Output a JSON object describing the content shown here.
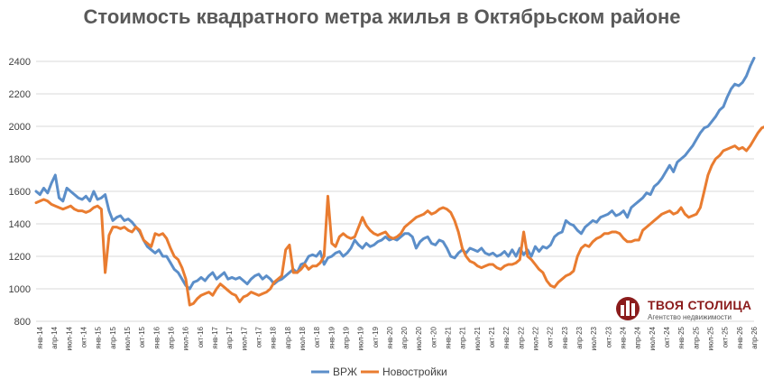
{
  "chart_data": {
    "type": "line",
    "title": "Стоимость квадратного метра жилья в Октябрьском районе",
    "xlabel": "",
    "ylabel": "",
    "ylim": [
      800,
      2400
    ],
    "yticks": [
      800,
      1000,
      1200,
      1400,
      1600,
      1800,
      2000,
      2200,
      2400
    ],
    "grid": true,
    "legend_position": "bottom",
    "x_tick_labels": [
      "янв-14",
      "апр-14",
      "июл-14",
      "окт-14",
      "янв-15",
      "апр-15",
      "июл-15",
      "окт-15",
      "янв-16",
      "апр-16",
      "июл-16",
      "окт-16",
      "янв-17",
      "апр-17",
      "июл-17",
      "окт-17",
      "янв-18",
      "апр-18",
      "июл-18",
      "окт-18",
      "янв-19",
      "апр-19",
      "июл-19",
      "окт-19",
      "янв-20",
      "апр-20",
      "июл-20",
      "окт-20",
      "янв-21",
      "апр-21",
      "июл-21",
      "окт-21",
      "янв-22",
      "апр-22",
      "июл-22",
      "окт-22",
      "янв-23",
      "апр-23",
      "июл-23",
      "окт-23",
      "янв-24",
      "апр-24",
      "июл-24",
      "окт-24",
      "янв-25",
      "апр-25",
      "июл-25",
      "окт-25",
      "янв-26",
      "апр-26"
    ],
    "series": [
      {
        "name": "ВРЖ",
        "color": "#5b8ec9",
        "values": [
          1600,
          1580,
          1620,
          1590,
          1650,
          1700,
          1560,
          1540,
          1620,
          1600,
          1580,
          1560,
          1550,
          1570,
          1540,
          1600,
          1550,
          1560,
          1580,
          1480,
          1420,
          1440,
          1450,
          1420,
          1430,
          1410,
          1380,
          1350,
          1300,
          1260,
          1240,
          1220,
          1240,
          1200,
          1200,
          1160,
          1120,
          1100,
          1060,
          1020,
          1000,
          1040,
          1050,
          1070,
          1050,
          1080,
          1100,
          1060,
          1080,
          1100,
          1060,
          1070,
          1060,
          1070,
          1050,
          1030,
          1060,
          1080,
          1090,
          1060,
          1080,
          1060,
          1030,
          1050,
          1060,
          1080,
          1100,
          1120,
          1100,
          1150,
          1160,
          1200,
          1210,
          1200,
          1230,
          1150,
          1190,
          1200,
          1220,
          1230,
          1200,
          1220,
          1250,
          1300,
          1270,
          1250,
          1280,
          1260,
          1270,
          1290,
          1300,
          1320,
          1300,
          1310,
          1300,
          1320,
          1340,
          1340,
          1320,
          1250,
          1290,
          1310,
          1320,
          1280,
          1270,
          1300,
          1290,
          1250,
          1200,
          1190,
          1220,
          1240,
          1220,
          1250,
          1240,
          1230,
          1250,
          1220,
          1210,
          1220,
          1200,
          1210,
          1230,
          1200,
          1240,
          1200,
          1250,
          1210,
          1240,
          1200,
          1260,
          1230,
          1260,
          1250,
          1270,
          1320,
          1340,
          1350,
          1420,
          1400,
          1390,
          1360,
          1340,
          1380,
          1400,
          1420,
          1410,
          1440,
          1450,
          1460,
          1480,
          1450,
          1460,
          1480,
          1440,
          1500,
          1520,
          1540,
          1560,
          1590,
          1580,
          1630,
          1650,
          1680,
          1720,
          1760,
          1720,
          1780,
          1800,
          1820,
          1850,
          1880,
          1920,
          1960,
          1990,
          2000,
          2030,
          2060,
          2100,
          2120,
          2180,
          2230,
          2260,
          2250,
          2270,
          2310,
          2370,
          2420
        ]
      },
      {
        "name": "Новостройки",
        "color": "#e97c30",
        "values": [
          1530,
          1540,
          1550,
          1540,
          1520,
          1510,
          1500,
          1490,
          1500,
          1510,
          1490,
          1480,
          1480,
          1470,
          1480,
          1500,
          1510,
          1490,
          1100,
          1330,
          1380,
          1380,
          1370,
          1380,
          1360,
          1350,
          1380,
          1360,
          1300,
          1280,
          1260,
          1340,
          1330,
          1340,
          1310,
          1250,
          1200,
          1180,
          1130,
          1060,
          900,
          910,
          940,
          960,
          970,
          980,
          960,
          1000,
          1030,
          1010,
          990,
          970,
          960,
          920,
          950,
          960,
          980,
          970,
          960,
          970,
          980,
          1000,
          1040,
          1060,
          1080,
          1240,
          1270,
          1100,
          1100,
          1120,
          1150,
          1120,
          1140,
          1140,
          1160,
          1200,
          1570,
          1280,
          1260,
          1320,
          1340,
          1320,
          1310,
          1320,
          1380,
          1440,
          1390,
          1360,
          1340,
          1330,
          1340,
          1350,
          1320,
          1310,
          1320,
          1340,
          1380,
          1400,
          1420,
          1440,
          1450,
          1460,
          1480,
          1460,
          1470,
          1490,
          1500,
          1490,
          1470,
          1420,
          1350,
          1250,
          1200,
          1170,
          1160,
          1140,
          1130,
          1140,
          1150,
          1150,
          1130,
          1120,
          1140,
          1150,
          1150,
          1160,
          1180,
          1350,
          1200,
          1180,
          1150,
          1120,
          1100,
          1050,
          1020,
          1010,
          1040,
          1060,
          1080,
          1090,
          1110,
          1200,
          1250,
          1270,
          1260,
          1290,
          1310,
          1320,
          1340,
          1340,
          1350,
          1350,
          1340,
          1310,
          1290,
          1290,
          1300,
          1300,
          1360,
          1380,
          1400,
          1420,
          1440,
          1460,
          1470,
          1480,
          1460,
          1470,
          1500,
          1460,
          1440,
          1450,
          1460,
          1500,
          1600,
          1700,
          1760,
          1800,
          1820,
          1850,
          1860,
          1870,
          1880,
          1860,
          1870,
          1850,
          1880,
          1920,
          1960,
          1990,
          2000,
          2020,
          2060,
          2090,
          2080,
          2060
        ]
      }
    ]
  },
  "legend": [
    {
      "label": "ВРЖ",
      "color": "#5b8ec9"
    },
    {
      "label": "Новостройки",
      "color": "#e97c30"
    }
  ],
  "logo": {
    "name": "ТВОЯ СТОЛИЦА",
    "subtitle": "Агентство недвижимости",
    "color": "#8b1c1c"
  }
}
